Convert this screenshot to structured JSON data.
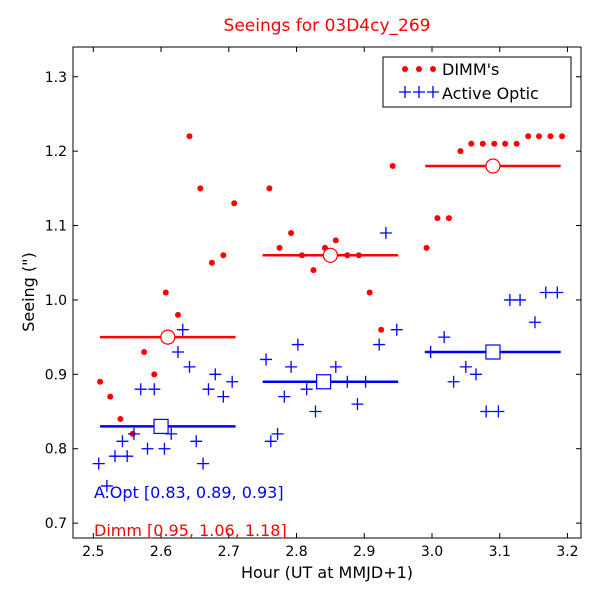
{
  "chart_data": {
    "type": "scatter",
    "title": "Seeings for 03D4cy_269",
    "xlabel": "Hour (UT at MMJD+1)",
    "ylabel": "Seeing (\")",
    "xlim": [
      2.47,
      3.22
    ],
    "ylim": [
      0.68,
      1.34
    ],
    "xticks": [
      2.5,
      2.6,
      2.7,
      2.8,
      2.9,
      3.0,
      3.1,
      3.2
    ],
    "xtick_labels": [
      "2.5",
      "2.6",
      "2.7",
      "2.8",
      "2.9",
      "3.0",
      "3.1",
      "3.2"
    ],
    "yticks": [
      0.7,
      0.8,
      0.9,
      1.0,
      1.1,
      1.2,
      1.3
    ],
    "ytick_labels": [
      "0.7",
      "0.8",
      "0.9",
      "1.0",
      "1.1",
      "1.2",
      "1.3"
    ],
    "legend_position": "top-right",
    "colors": {
      "dimm": "#ff0000",
      "active_optic": "#0000ff",
      "title": "#ff0000"
    },
    "series": [
      {
        "name": "DIMM's",
        "marker": "dot",
        "color": "#ff0000",
        "points": [
          [
            2.51,
            0.89
          ],
          [
            2.525,
            0.87
          ],
          [
            2.54,
            0.84
          ],
          [
            2.558,
            0.82
          ],
          [
            2.575,
            0.93
          ],
          [
            2.59,
            0.9
          ],
          [
            2.607,
            1.01
          ],
          [
            2.625,
            0.98
          ],
          [
            2.642,
            1.22
          ],
          [
            2.658,
            1.15
          ],
          [
            2.675,
            1.05
          ],
          [
            2.692,
            1.06
          ],
          [
            2.708,
            1.13
          ],
          [
            2.76,
            1.15
          ],
          [
            2.775,
            1.07
          ],
          [
            2.792,
            1.09
          ],
          [
            2.808,
            1.06
          ],
          [
            2.825,
            1.04
          ],
          [
            2.842,
            1.07
          ],
          [
            2.858,
            1.08
          ],
          [
            2.875,
            1.06
          ],
          [
            2.892,
            1.06
          ],
          [
            2.908,
            1.01
          ],
          [
            2.925,
            0.96
          ],
          [
            2.942,
            1.18
          ],
          [
            2.992,
            1.07
          ],
          [
            3.008,
            1.11
          ],
          [
            3.025,
            1.11
          ],
          [
            3.042,
            1.2
          ],
          [
            3.058,
            1.21
          ],
          [
            3.075,
            1.21
          ],
          [
            3.092,
            1.21
          ],
          [
            3.108,
            1.21
          ],
          [
            3.125,
            1.21
          ],
          [
            3.142,
            1.22
          ],
          [
            3.158,
            1.22
          ],
          [
            3.175,
            1.22
          ],
          [
            3.192,
            1.22
          ]
        ]
      },
      {
        "name": "Active Optic",
        "marker": "plus",
        "color": "#0000ff",
        "points": [
          [
            2.508,
            0.78
          ],
          [
            2.52,
            0.75
          ],
          [
            2.532,
            0.79
          ],
          [
            2.543,
            0.81
          ],
          [
            2.55,
            0.79
          ],
          [
            2.56,
            0.82
          ],
          [
            2.57,
            0.88
          ],
          [
            2.58,
            0.8
          ],
          [
            2.59,
            0.88
          ],
          [
            2.605,
            0.8
          ],
          [
            2.615,
            0.82
          ],
          [
            2.625,
            0.93
          ],
          [
            2.632,
            0.96
          ],
          [
            2.642,
            0.91
          ],
          [
            2.652,
            0.81
          ],
          [
            2.662,
            0.78
          ],
          [
            2.67,
            0.88
          ],
          [
            2.68,
            0.9
          ],
          [
            2.692,
            0.87
          ],
          [
            2.705,
            0.89
          ],
          [
            2.755,
            0.92
          ],
          [
            2.762,
            0.81
          ],
          [
            2.772,
            0.82
          ],
          [
            2.782,
            0.87
          ],
          [
            2.792,
            0.91
          ],
          [
            2.802,
            0.94
          ],
          [
            2.815,
            0.88
          ],
          [
            2.828,
            0.85
          ],
          [
            2.84,
            0.89
          ],
          [
            2.858,
            0.91
          ],
          [
            2.875,
            0.89
          ],
          [
            2.89,
            0.86
          ],
          [
            2.902,
            0.89
          ],
          [
            2.922,
            0.94
          ],
          [
            2.932,
            1.09
          ],
          [
            2.948,
            0.96
          ],
          [
            2.998,
            0.93
          ],
          [
            3.018,
            0.95
          ],
          [
            3.032,
            0.89
          ],
          [
            3.05,
            0.91
          ],
          [
            3.065,
            0.9
          ],
          [
            3.08,
            0.85
          ],
          [
            3.098,
            0.85
          ],
          [
            3.115,
            1.0
          ],
          [
            3.13,
            1.0
          ],
          [
            3.152,
            0.97
          ],
          [
            3.168,
            1.01
          ],
          [
            3.185,
            1.01
          ]
        ]
      }
    ],
    "medians": [
      {
        "name": "DIMM median",
        "color": "#ff0000",
        "marker": "circle",
        "segments": [
          {
            "x_start": 2.51,
            "x_end": 2.71,
            "y": 0.95,
            "marker_x": 2.61
          },
          {
            "x_start": 2.75,
            "x_end": 2.95,
            "y": 1.06,
            "marker_x": 2.85
          },
          {
            "x_start": 2.99,
            "x_end": 3.19,
            "y": 1.18,
            "marker_x": 3.09
          }
        ]
      },
      {
        "name": "Active Optic median",
        "color": "#0000ff",
        "marker": "square",
        "segments": [
          {
            "x_start": 2.51,
            "x_end": 2.71,
            "y": 0.83,
            "marker_x": 2.6
          },
          {
            "x_start": 2.75,
            "x_end": 2.95,
            "y": 0.89,
            "marker_x": 2.84
          },
          {
            "x_start": 2.99,
            "x_end": 3.19,
            "y": 0.93,
            "marker_x": 3.09
          }
        ]
      }
    ],
    "annotations": {
      "aopt_summary": "A.Opt [0.83, 0.89, 0.93]",
      "dimm_summary": "Dimm [0.95, 1.06, 1.18]"
    }
  }
}
